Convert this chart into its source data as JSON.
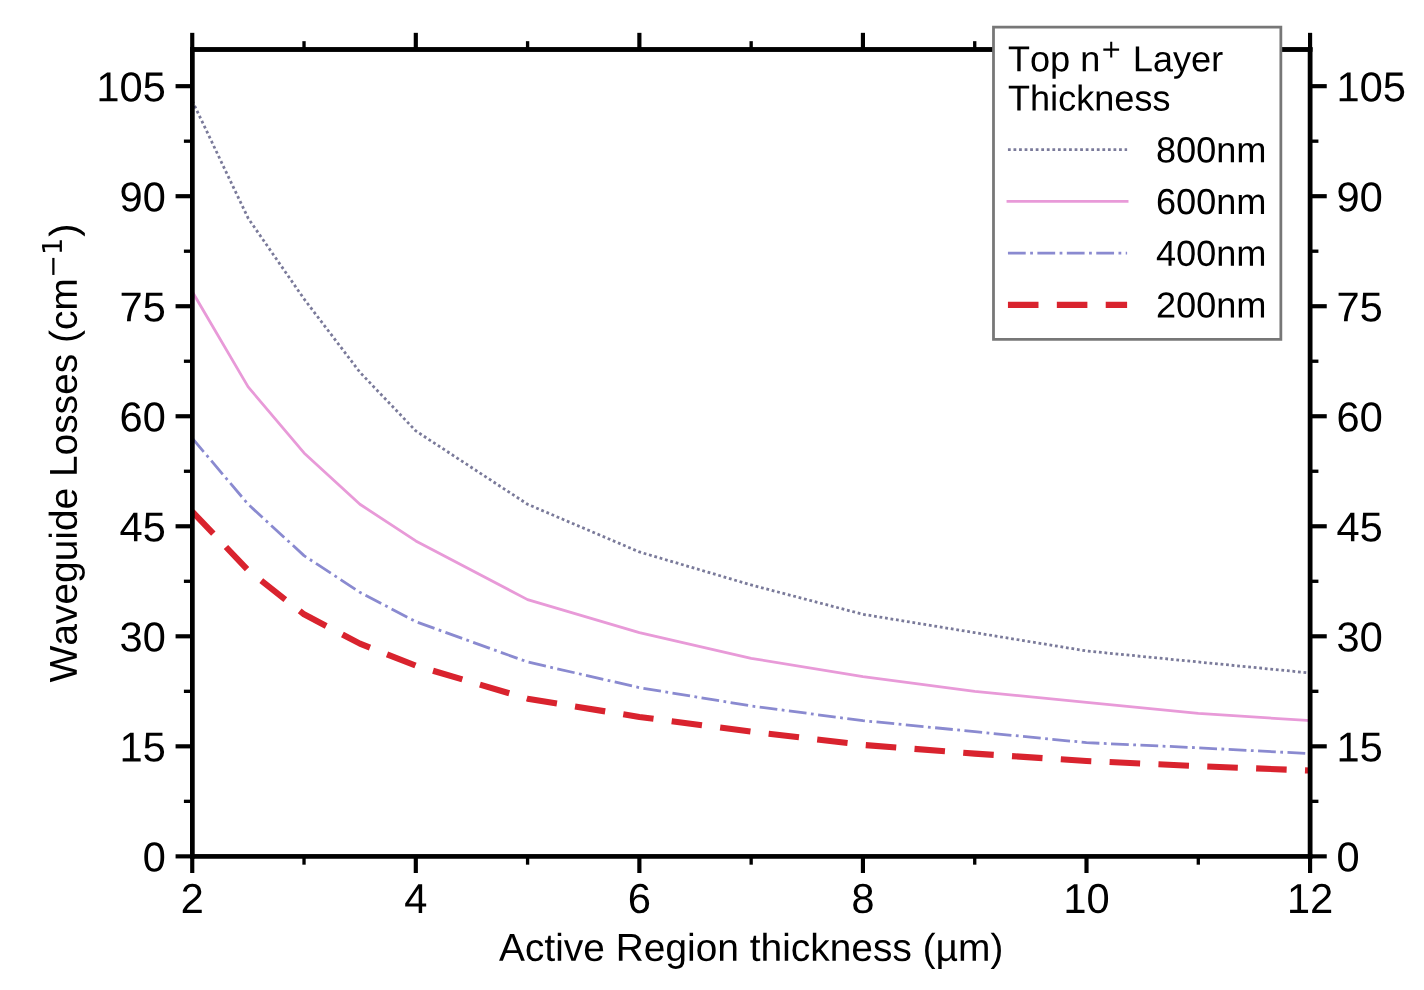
{
  "chart_data": {
    "type": "line",
    "xlabel": "Active Region thickness (µm)",
    "ylabel": "Waveguide Losses (cm$^{−1}$)",
    "legend_title": "Top n$^{+}$ Layer\nThickness",
    "x": [
      2,
      2.5,
      3,
      3.5,
      4,
      5,
      6,
      7,
      8,
      9,
      10,
      11,
      12
    ],
    "series": [
      {
        "name": "800nm",
        "color": "#7a7a9a",
        "line_style": "dotted",
        "values": [
          103,
          87,
          76,
          66,
          58,
          48,
          41.5,
          37,
          33,
          30.5,
          28,
          26.5,
          25
        ]
      },
      {
        "name": "600nm",
        "color": "#e89ad8",
        "line_style": "solid",
        "values": [
          77,
          64,
          55,
          48,
          43,
          35,
          30.5,
          27,
          24.5,
          22.5,
          21,
          19.5,
          18.5
        ]
      },
      {
        "name": "400nm",
        "color": "#8a8ad0",
        "line_style": "dashdot",
        "values": [
          57,
          48,
          41,
          36,
          32,
          26.5,
          23,
          20.5,
          18.5,
          17,
          15.5,
          14.8,
          14
        ]
      },
      {
        "name": "200nm",
        "color": "#d9232e",
        "line_style": "dashed",
        "values": [
          47,
          39,
          33,
          29,
          26,
          21.5,
          19,
          17,
          15.2,
          14,
          13,
          12.3,
          11.7
        ]
      }
    ],
    "xlim": [
      2,
      12
    ],
    "xticks": [
      2,
      4,
      6,
      8,
      10,
      12
    ],
    "ylim": [
      0,
      110
    ],
    "yticks": [
      0,
      15,
      30,
      45,
      60,
      75,
      90,
      105
    ],
    "y2lim": [
      0,
      110
    ],
    "y2ticks": [
      0,
      15,
      30,
      45,
      60,
      75,
      90,
      105
    ],
    "grid": false,
    "legend": "top right"
  }
}
